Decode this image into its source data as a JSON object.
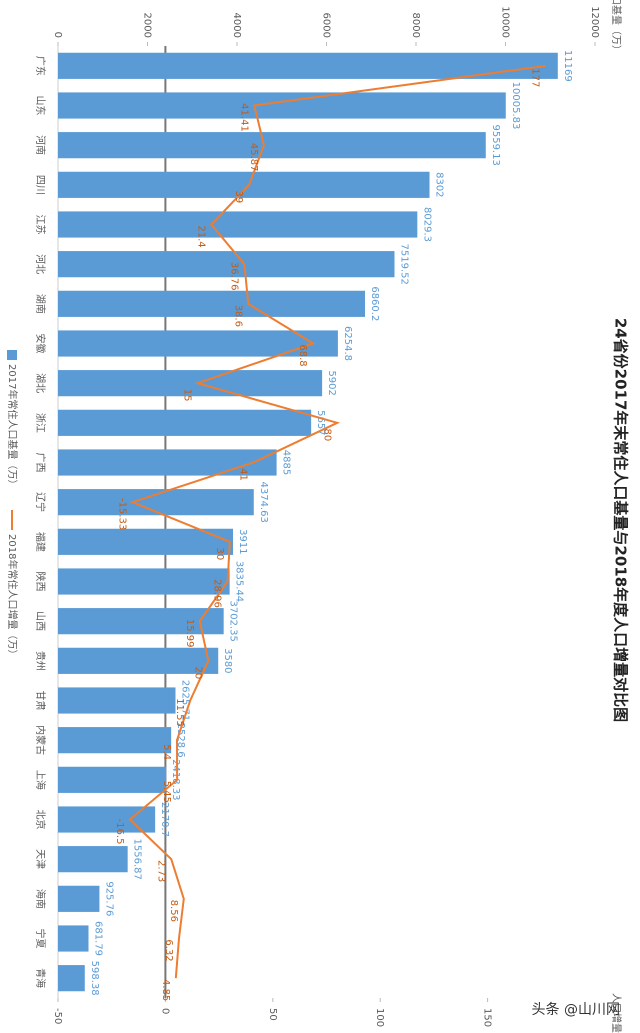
{
  "chart_data": {
    "type": "bar-line",
    "title": "24省份2017年末常住人口基量与2018年度人口增量对比图",
    "y_label": "人口基量（万）",
    "y2_label": "人口增量",
    "categories": [
      "广东",
      "山东",
      "河南",
      "四川",
      "江苏",
      "河北",
      "湖南",
      "安徽",
      "湖北",
      "浙江",
      "广西",
      "辽宁",
      "福建",
      "陕西",
      "山西",
      "贵州",
      "甘肃",
      "内蒙古",
      "上海",
      "北京",
      "天津",
      "海南",
      "宁夏",
      "青海"
    ],
    "series": [
      {
        "name": "2017年常住人口基量（万）",
        "type": "bar",
        "color": "#5b9bd5",
        "values": [
          11169,
          10005.83,
          9559.13,
          8302,
          8029.3,
          7519.52,
          6860.2,
          6254.8,
          5902,
          5657,
          4885,
          4374.63,
          3911,
          3835.44,
          3702.35,
          3580,
          2625.71,
          2528.6,
          2418.33,
          2170.7,
          1556.87,
          925.76,
          681.79,
          598.38
        ]
      },
      {
        "name": "2018年常住人口增量（万）",
        "type": "line",
        "axis": "y2",
        "color": "#ed7d31",
        "values": [
          177,
          41.41,
          45.87,
          39,
          21.4,
          36.76,
          38.6,
          68.8,
          15,
          80,
          41,
          -15.33,
          30,
          28.96,
          15.99,
          20,
          11.55,
          5.4,
          5.45,
          -16.5,
          2.73,
          8.56,
          6.32,
          4.85
        ]
      }
    ],
    "ylim": [
      0,
      12000
    ],
    "yticks": [
      0,
      2000,
      4000,
      6000,
      8000,
      10000,
      12000
    ],
    "y2lim": [
      -50,
      200
    ],
    "y2ticks": [
      -50,
      0,
      50,
      100,
      150
    ],
    "footer": "头条 @山川网"
  }
}
